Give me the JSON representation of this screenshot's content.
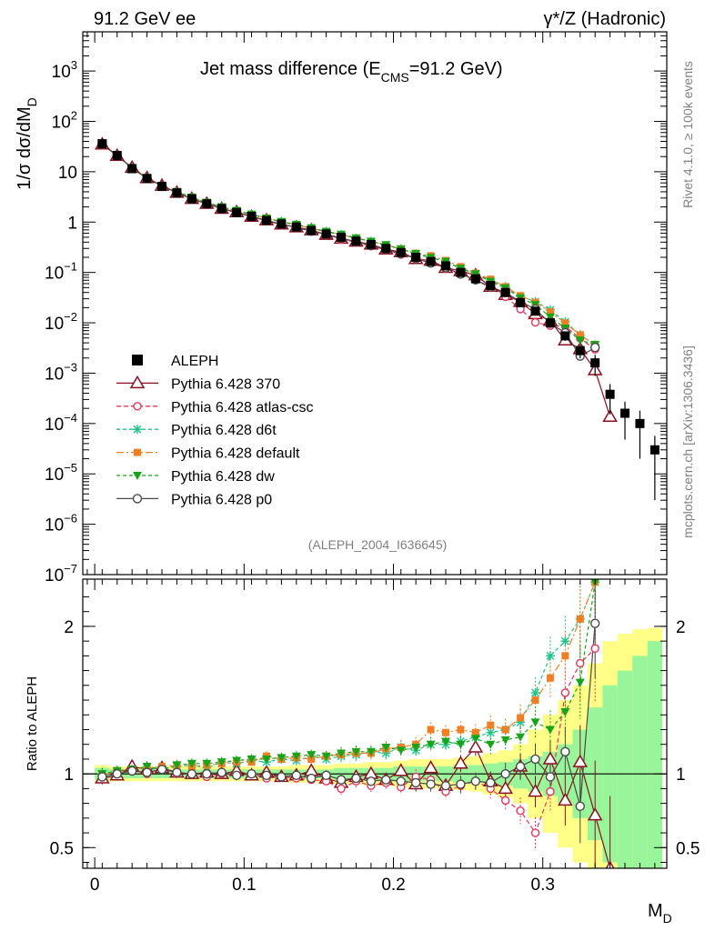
{
  "header": {
    "left": "91.2 GeV ee",
    "right": "γ*/Z (Hadronic)"
  },
  "side_labels": {
    "rivet": "Rivet 4.1.0, ≥ 100k events",
    "mcplots": "mcplots.cern.ch [arXiv:1306.3436]"
  },
  "chart_data": {
    "type": "scatter",
    "title": "Jet mass difference (E",
    "title_sub": "CMS",
    "title_end": "=91.2 GeV)",
    "analysis_id": "(ALEPH_2004_I636645)",
    "xlabel": "M",
    "xlabel_sub": "D",
    "ylabel": "1/σ  dσ/dM",
    "ylabel_sub": "D",
    "ratio_ylabel": "Ratio to ALEPH",
    "xlim": [
      -0.008,
      0.383
    ],
    "ylim_log": [
      1e-07,
      6000
    ],
    "ratio_ylim": [
      0.36,
      2.32
    ],
    "x_ticks": [
      "0",
      "0.1",
      "0.2",
      "0.3"
    ],
    "x_tick_values": [
      0,
      0.1,
      0.2,
      0.3
    ],
    "y_ticks": [
      {
        "v": 1000,
        "m": "10",
        "e": "3"
      },
      {
        "v": 100,
        "m": "10",
        "e": "2"
      },
      {
        "v": 10,
        "m": "10",
        "e": ""
      },
      {
        "v": 1,
        "m": "1",
        "e": ""
      },
      {
        "v": 0.1,
        "m": "10",
        "e": "−1"
      },
      {
        "v": 0.01,
        "m": "10",
        "e": "−2"
      },
      {
        "v": 0.001,
        "m": "10",
        "e": "−3"
      },
      {
        "v": 0.0001,
        "m": "10",
        "e": "−4"
      },
      {
        "v": 1e-05,
        "m": "10",
        "e": "−5"
      },
      {
        "v": 1e-06,
        "m": "10",
        "e": "−6"
      },
      {
        "v": 1e-07,
        "m": "10",
        "e": "−7"
      }
    ],
    "ratio_ticks": [
      {
        "v": 0.5,
        "label": "0.5"
      },
      {
        "v": 1,
        "label": "1"
      },
      {
        "v": 2,
        "label": "2"
      }
    ],
    "x": [
      0.005,
      0.015,
      0.025,
      0.035,
      0.045,
      0.055,
      0.065,
      0.075,
      0.085,
      0.095,
      0.105,
      0.115,
      0.125,
      0.135,
      0.145,
      0.155,
      0.165,
      0.175,
      0.185,
      0.195,
      0.205,
      0.215,
      0.225,
      0.235,
      0.245,
      0.255,
      0.265,
      0.275,
      0.285,
      0.295,
      0.305,
      0.315,
      0.325,
      0.335,
      0.345,
      0.355,
      0.365,
      0.375
    ],
    "data": {
      "name": "ALEPH",
      "values": [
        36,
        21,
        11.5,
        7.3,
        5.1,
        3.8,
        2.9,
        2.3,
        1.85,
        1.55,
        1.3,
        1.08,
        0.92,
        0.8,
        0.68,
        0.58,
        0.5,
        0.42,
        0.36,
        0.3,
        0.25,
        0.2,
        0.165,
        0.135,
        0.1,
        0.075,
        0.055,
        0.04,
        0.025,
        0.017,
        0.01,
        0.0055,
        0.0028,
        0.0016,
        0.00038,
        0.00016,
        0.0001,
        3e-05
      ],
      "band_inner": [
        0.04,
        0.03,
        0.03,
        0.03,
        0.03,
        0.03,
        0.03,
        0.03,
        0.03,
        0.03,
        0.03,
        0.03,
        0.03,
        0.03,
        0.03,
        0.03,
        0.04,
        0.04,
        0.04,
        0.04,
        0.05,
        0.05,
        0.05,
        0.05,
        0.06,
        0.06,
        0.07,
        0.08,
        0.1,
        0.12,
        0.15,
        0.2,
        0.3,
        0.45,
        0.6,
        0.7,
        0.8,
        0.9
      ],
      "band_outer": [
        0.06,
        0.05,
        0.05,
        0.05,
        0.05,
        0.05,
        0.05,
        0.05,
        0.05,
        0.05,
        0.05,
        0.05,
        0.05,
        0.06,
        0.06,
        0.06,
        0.07,
        0.07,
        0.08,
        0.08,
        0.09,
        0.1,
        0.1,
        0.1,
        0.11,
        0.12,
        0.14,
        0.16,
        0.2,
        0.3,
        0.4,
        0.5,
        0.6,
        0.75,
        0.9,
        0.95,
        0.98,
        0.99
      ]
    },
    "series": [
      {
        "name": "Pythia 6.428 370",
        "color": "#8b0f1f",
        "marker": "triangle",
        "dash": "",
        "ratio": [
          0.97,
          0.99,
          1.05,
          1.03,
          1.04,
          1.01,
          1.0,
          1.01,
          1.0,
          1.02,
          0.99,
          1.01,
          0.98,
          0.99,
          1.02,
          0.97,
          0.94,
          0.98,
          1.0,
          0.96,
          1.02,
          0.93,
          1.04,
          0.92,
          1.07,
          1.18,
          0.95,
          0.9,
          1.05,
          0.88,
          1.1,
          0.82,
          1.08,
          0.72,
          0.36,
          null,
          null,
          null
        ]
      },
      {
        "name": "Pythia 6.428 atlas-csc",
        "color": "#e8355a",
        "marker": "circle",
        "dash": "5,3",
        "ratio": [
          0.98,
          1.02,
          1.03,
          1.0,
          1.04,
          1.0,
          1.0,
          0.98,
          1.0,
          0.99,
          1.0,
          0.97,
          0.98,
          0.97,
          0.96,
          0.95,
          0.9,
          0.95,
          0.92,
          0.94,
          0.91,
          0.98,
          0.96,
          0.88,
          0.92,
          0.95,
          0.9,
          0.82,
          0.75,
          0.6,
          0.88,
          1.55,
          1.75,
          1.85,
          null,
          null,
          null,
          null
        ]
      },
      {
        "name": "Pythia 6.428 d6t",
        "color": "#22c38a",
        "marker": "star",
        "dash": "4,3",
        "ratio": [
          1.0,
          1.02,
          1.03,
          1.04,
          1.03,
          1.05,
          1.06,
          1.04,
          1.08,
          1.07,
          1.09,
          1.08,
          1.1,
          1.09,
          1.12,
          1.1,
          1.12,
          1.13,
          1.15,
          1.14,
          1.18,
          1.16,
          1.2,
          1.2,
          1.22,
          1.25,
          1.28,
          1.3,
          1.35,
          1.55,
          1.8,
          1.9,
          2.05,
          2.3,
          null,
          null,
          null,
          null
        ]
      },
      {
        "name": "Pythia 6.428 default",
        "color": "#f07f24",
        "marker": "square",
        "dash": "8,3,2,3",
        "ratio": [
          1.0,
          1.0,
          1.03,
          1.04,
          1.05,
          1.06,
          1.05,
          1.06,
          1.07,
          1.08,
          1.08,
          1.12,
          1.1,
          1.11,
          1.1,
          1.12,
          1.13,
          1.14,
          1.14,
          1.17,
          1.18,
          1.2,
          1.3,
          1.28,
          1.3,
          1.28,
          1.33,
          1.3,
          1.38,
          1.5,
          1.65,
          1.8,
          2.05,
          2.3,
          null,
          null,
          null,
          null
        ]
      },
      {
        "name": "Pythia 6.428 dw",
        "color": "#18a418",
        "marker": "triangledown",
        "dash": "4,3",
        "ratio": [
          1.0,
          1.02,
          1.03,
          1.05,
          1.03,
          1.06,
          1.07,
          1.07,
          1.08,
          1.09,
          1.1,
          1.1,
          1.11,
          1.12,
          1.13,
          1.12,
          1.14,
          1.15,
          1.15,
          1.18,
          1.16,
          1.18,
          1.2,
          1.22,
          1.2,
          1.24,
          1.2,
          1.23,
          1.25,
          1.35,
          1.3,
          1.42,
          1.62,
          2.3,
          null,
          null,
          null,
          null
        ]
      },
      {
        "name": "Pythia 6.428 p0",
        "color": "#4a4a4a",
        "marker": "opencircle",
        "dash": "",
        "ratio": [
          0.98,
          1.0,
          1.02,
          1.01,
          1.03,
          1.01,
          1.0,
          1.0,
          1.01,
          0.99,
          1.0,
          0.99,
          0.98,
          0.99,
          0.97,
          0.99,
          0.96,
          0.97,
          0.95,
          0.96,
          0.95,
          0.94,
          0.93,
          0.92,
          0.93,
          0.95,
          0.94,
          1.0,
          1.05,
          1.1,
          0.98,
          1.15,
          0.78,
          2.02,
          null,
          null,
          null,
          null
        ]
      }
    ]
  }
}
